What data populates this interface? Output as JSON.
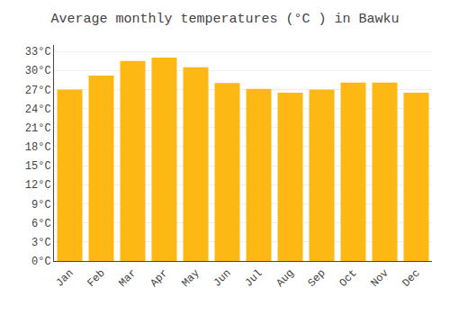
{
  "chart_data": {
    "type": "bar",
    "title": "Average monthly temperatures (°C ) in Bawku",
    "categories": [
      "Jan",
      "Feb",
      "Mar",
      "Apr",
      "May",
      "Jun",
      "Jul",
      "Aug",
      "Sep",
      "Oct",
      "Nov",
      "Dec"
    ],
    "values": [
      27.0,
      29.2,
      31.5,
      32.0,
      30.5,
      28.0,
      27.1,
      26.5,
      27.0,
      28.1,
      28.1,
      26.5
    ],
    "color": "#FDB813",
    "ylim": [
      0,
      34
    ],
    "yticks": [
      {
        "value": 0,
        "label": "0°C"
      },
      {
        "value": 3,
        "label": "3°C"
      },
      {
        "value": 6,
        "label": "6°C"
      },
      {
        "value": 9,
        "label": "9°C"
      },
      {
        "value": 12,
        "label": "12°C"
      },
      {
        "value": 15,
        "label": "15°C"
      },
      {
        "value": 18,
        "label": "18°C"
      },
      {
        "value": 21,
        "label": "21°C"
      },
      {
        "value": 24,
        "label": "24°C"
      },
      {
        "value": 27,
        "label": "27°C"
      },
      {
        "value": 30,
        "label": "30°C"
      },
      {
        "value": 33,
        "label": "33°C"
      }
    ],
    "grid": true
  }
}
